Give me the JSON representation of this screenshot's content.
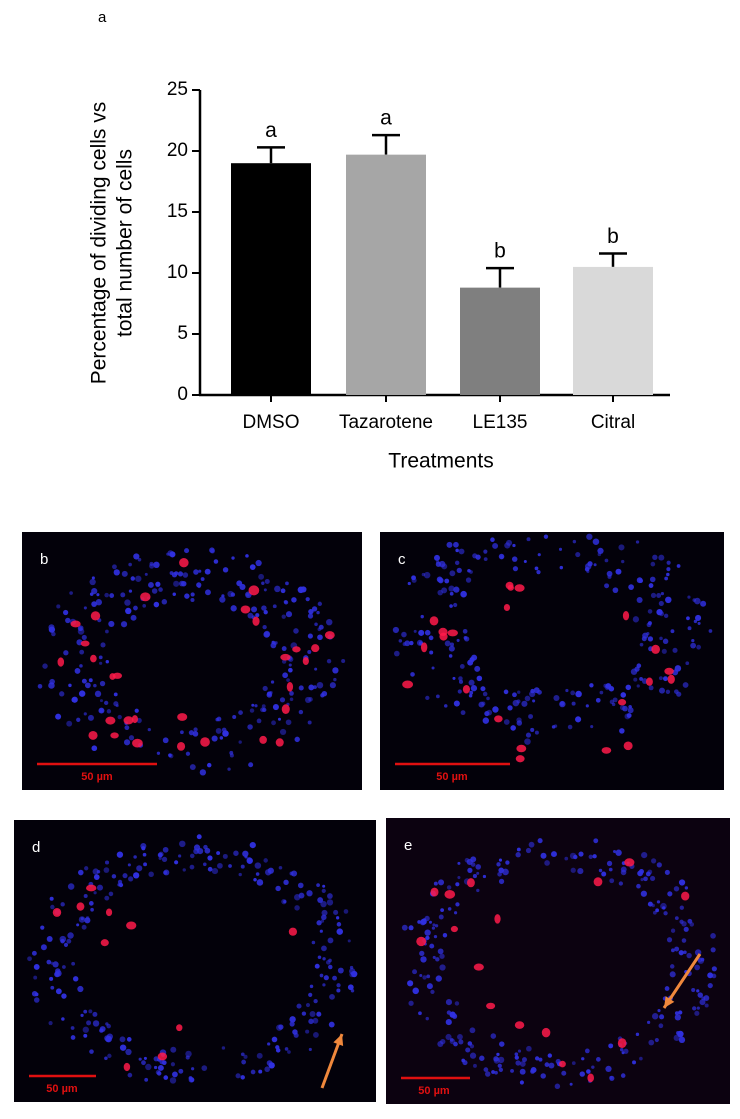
{
  "chart_data": {
    "type": "bar",
    "panel_label": "a",
    "ylabel": [
      "Percentage of dividing cells vs",
      "total number of cells"
    ],
    "xlabel": "Treatments",
    "categories": [
      "DMSO",
      "Tazarotene",
      "LE135",
      "Citral"
    ],
    "values": [
      19,
      19.7,
      8.8,
      10.5
    ],
    "errors": [
      1.3,
      1.6,
      1.6,
      1.1
    ],
    "colors": [
      "#000000",
      "#a6a6a6",
      "#7f7f7f",
      "#d9d9d9"
    ],
    "significance": [
      "a",
      "a",
      "b",
      "b"
    ],
    "ylim": [
      0,
      25
    ],
    "yticks": [
      0,
      5,
      10,
      15,
      20,
      25
    ]
  },
  "panels": [
    {
      "label": "b",
      "scale_bar": "50 µm"
    },
    {
      "label": "c",
      "scale_bar": "50 µm"
    },
    {
      "label": "d",
      "scale_bar": "50 µm"
    },
    {
      "label": "e",
      "scale_bar": "50 µm"
    }
  ]
}
